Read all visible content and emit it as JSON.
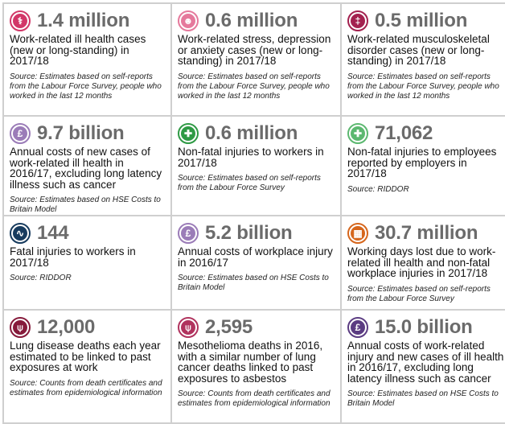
{
  "cards": [
    {
      "icon": "stethoscope-icon",
      "color": "#d23768",
      "glyph": "⚕",
      "value": "1.4 million",
      "description": "Work-related ill health cases (new or long-standing) in 2017/18",
      "source": "Source: Estimates based on self-reports from the Labour Force Survey, people who worked in the last 12 months"
    },
    {
      "icon": "head-icon",
      "color": "#e5799c",
      "glyph": "☻",
      "value": "0.6 million",
      "description": "Work-related stress, depression or anxiety cases (new or long-standing) in 2017/18",
      "source": "Source: Estimates based on self-reports from the Labour Force Survey, people who worked in the last 12 months"
    },
    {
      "icon": "spine-icon",
      "color": "#a3214f",
      "glyph": "‡",
      "value": "0.5 million",
      "description": "Work-related musculoskeletal disorder cases (new or long-standing) in 2017/18",
      "source": "Source: Estimates based on self-reports from the Labour Force Survey, people who worked in the last 12 months"
    },
    {
      "icon": "pound-icon",
      "color": "#9b7cb8",
      "glyph": "£",
      "value": "9.7 billion",
      "description": "Annual costs of new cases of work-related ill health in 2016/17, excluding long latency illness such as cancer",
      "source": "Source: Estimates based on HSE Costs to Britain Model"
    },
    {
      "icon": "first-aid-cross-icon",
      "color": "#2f9a45",
      "glyph": "✚",
      "value": "0.6 million",
      "description": "Non-fatal injuries to workers in 2017/18",
      "source": "Source: Estimates based on self-reports from the Labour Force Survey"
    },
    {
      "icon": "first-aid-cross-icon",
      "color": "#5cb870",
      "glyph": "✚",
      "value": "71,062",
      "description": "Non-fatal injuries to employees reported by employers in 2017/18",
      "source": "Source: RIDDOR"
    },
    {
      "icon": "heartbeat-icon",
      "color": "#173b5e",
      "glyph": "∿",
      "value": "144",
      "description": "Fatal injuries to workers in 2017/18",
      "source": "Source: RIDDOR"
    },
    {
      "icon": "pound-icon",
      "color": "#9b7cb8",
      "glyph": "£",
      "value": "5.2 billion",
      "description": "Annual costs of workplace injury in 2016/17",
      "source": "Source: Estimates based on HSE Costs to Britain Model"
    },
    {
      "icon": "calendar-icon",
      "color": "#d6661c",
      "glyph": "▦",
      "value": "30.7 million",
      "description": "Working days lost due to work-related ill health and non-fatal workplace injuries in 2017/18",
      "source": "Source: Estimates based on self-reports from the Labour Force Survey"
    },
    {
      "icon": "lungs-icon",
      "color": "#861a3b",
      "glyph": "⍦",
      "value": "12,000",
      "description": "Lung disease deaths each year estimated to be linked to past exposures at work",
      "source": "Source: Counts from death certificates and estimates from epidemiological information"
    },
    {
      "icon": "lungs-icon",
      "color": "#b0335e",
      "glyph": "⍦",
      "value": "2,595",
      "description": "Mesothelioma deaths in 2016, with a similar number of lung cancer deaths linked to past exposures to asbestos",
      "source": "Source: Counts from death certificates and estimates from epidemiological information"
    },
    {
      "icon": "pound-icon",
      "color": "#5b3c82",
      "glyph": "£",
      "value": "15.0 billion",
      "description": "Annual costs of work-related injury and new cases of ill health in 2016/17, excluding long latency illness such as cancer",
      "source": "Source: Estimates based on HSE Costs to Britain Model"
    }
  ]
}
